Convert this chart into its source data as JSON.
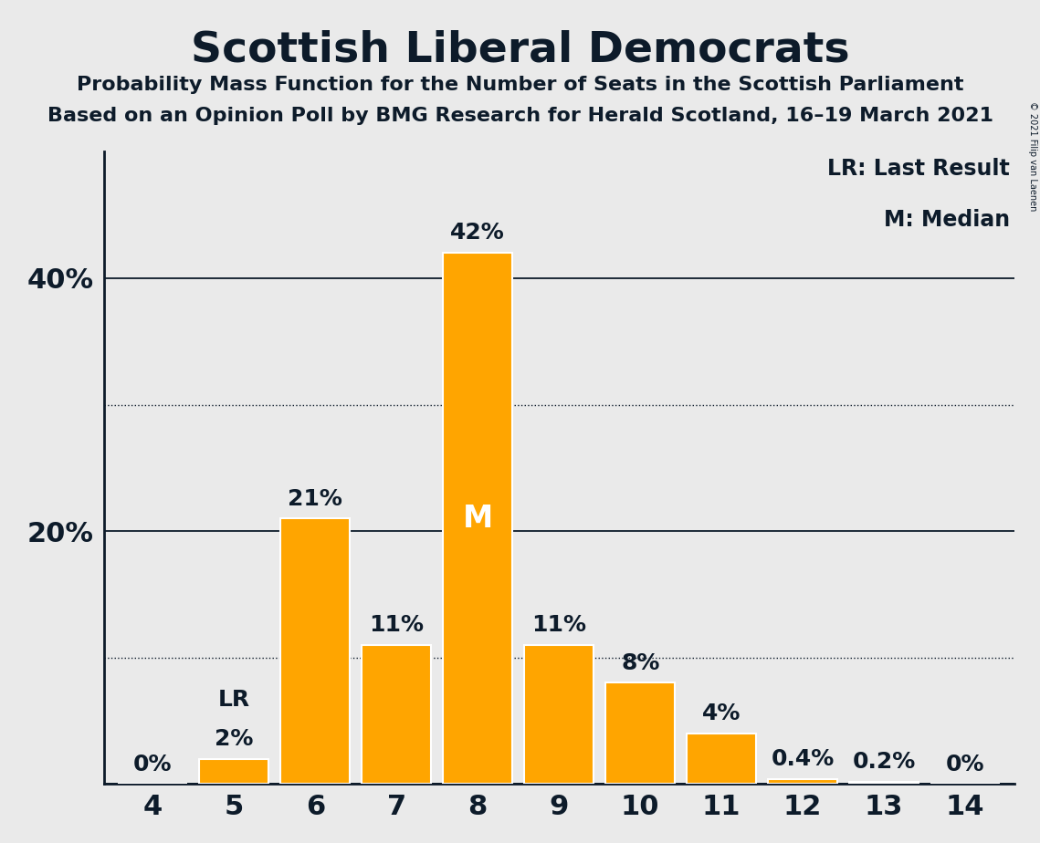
{
  "title": "Scottish Liberal Democrats",
  "subtitle1": "Probability Mass Function for the Number of Seats in the Scottish Parliament",
  "subtitle2": "Based on an Opinion Poll by BMG Research for Herald Scotland, 16–19 March 2021",
  "copyright": "© 2021 Filip van Laenen",
  "seats": [
    4,
    5,
    6,
    7,
    8,
    9,
    10,
    11,
    12,
    13,
    14
  ],
  "probabilities": [
    0.0,
    2.0,
    21.0,
    11.0,
    42.0,
    11.0,
    8.0,
    4.0,
    0.4,
    0.2,
    0.0
  ],
  "bar_labels": [
    "0%",
    "2%",
    "21%",
    "11%",
    "42%",
    "11%",
    "8%",
    "4%",
    "0.4%",
    "0.2%",
    "0%"
  ],
  "bar_color": "#FFA500",
  "background_color": "#EAEAEA",
  "text_color": "#0D1B2A",
  "median_seat": 8,
  "lr_seat": 5,
  "ylim": [
    0,
    50
  ],
  "solid_yticks": [
    0,
    20,
    40
  ],
  "dotted_yticks": [
    10,
    30
  ],
  "ytick_display": [
    20,
    40
  ],
  "legend_text1": "LR: Last Result",
  "legend_text2": "M: Median"
}
